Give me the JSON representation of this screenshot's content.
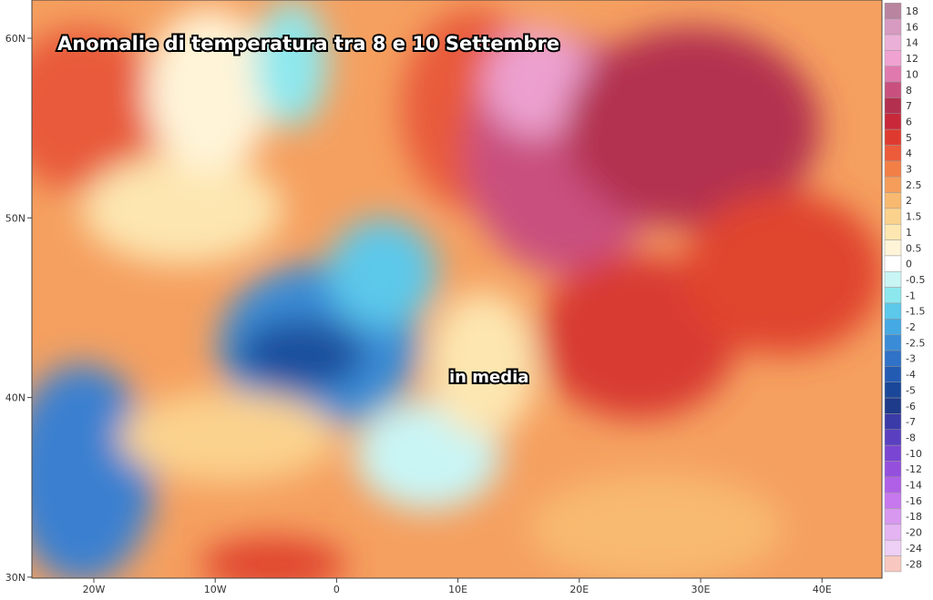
{
  "map": {
    "title": "Anomalie di temperatura tra 8 e 10 Settembre",
    "annotation": "in media",
    "lat_labels": [
      "60N",
      "50N",
      "40N",
      "30N"
    ],
    "lon_labels": [
      "20W",
      "10W",
      "0",
      "10E",
      "20E",
      "30E",
      "40E"
    ],
    "colorbar": [
      {
        "label": 18,
        "color": "#b8849f"
      },
      {
        "label": 16,
        "color": "#d79bc2"
      },
      {
        "label": 14,
        "color": "#ebb0d8"
      },
      {
        "label": 12,
        "color": "#f0a2d2"
      },
      {
        "label": 10,
        "color": "#e07aae"
      },
      {
        "label": 8,
        "color": "#c9507e"
      },
      {
        "label": 7,
        "color": "#b3304f"
      },
      {
        "label": 6,
        "color": "#c8283a"
      },
      {
        "label": 5,
        "color": "#df3a2f"
      },
      {
        "label": 4,
        "color": "#ec5b3a"
      },
      {
        "label": 3,
        "color": "#f27f45"
      },
      {
        "label": 2.5,
        "color": "#f59d5a"
      },
      {
        "label": 2,
        "color": "#f8b970"
      },
      {
        "label": 1.5,
        "color": "#fbd28d"
      },
      {
        "label": 1,
        "color": "#fde6b0"
      },
      {
        "label": 0.5,
        "color": "#fff4d8"
      },
      {
        "label": 0,
        "color": "#ffffff"
      },
      {
        "label": -0.5,
        "color": "#c9f5f5"
      },
      {
        "label": -1,
        "color": "#8de8ee"
      },
      {
        "label": -1.5,
        "color": "#5cc8ea"
      },
      {
        "label": -2,
        "color": "#45a9e3"
      },
      {
        "label": -2.5,
        "color": "#3a8cd6"
      },
      {
        "label": -3,
        "color": "#2f72c7"
      },
      {
        "label": -4,
        "color": "#235bb3"
      },
      {
        "label": -5,
        "color": "#1a4799"
      },
      {
        "label": -6,
        "color": "#1e3a8a"
      },
      {
        "label": -7,
        "color": "#3a3aa8"
      },
      {
        "label": -8,
        "color": "#5a40c0"
      },
      {
        "label": -10,
        "color": "#7a45d2"
      },
      {
        "label": -12,
        "color": "#9450dd"
      },
      {
        "label": -14,
        "color": "#b060e6"
      },
      {
        "label": -16,
        "color": "#c878ee"
      },
      {
        "label": -18,
        "color": "#d898f0"
      },
      {
        "label": -20,
        "color": "#e4b4f2"
      },
      {
        "label": -24,
        "color": "#eecff5"
      },
      {
        "label": -28,
        "color": "#f8c8c0"
      }
    ]
  }
}
